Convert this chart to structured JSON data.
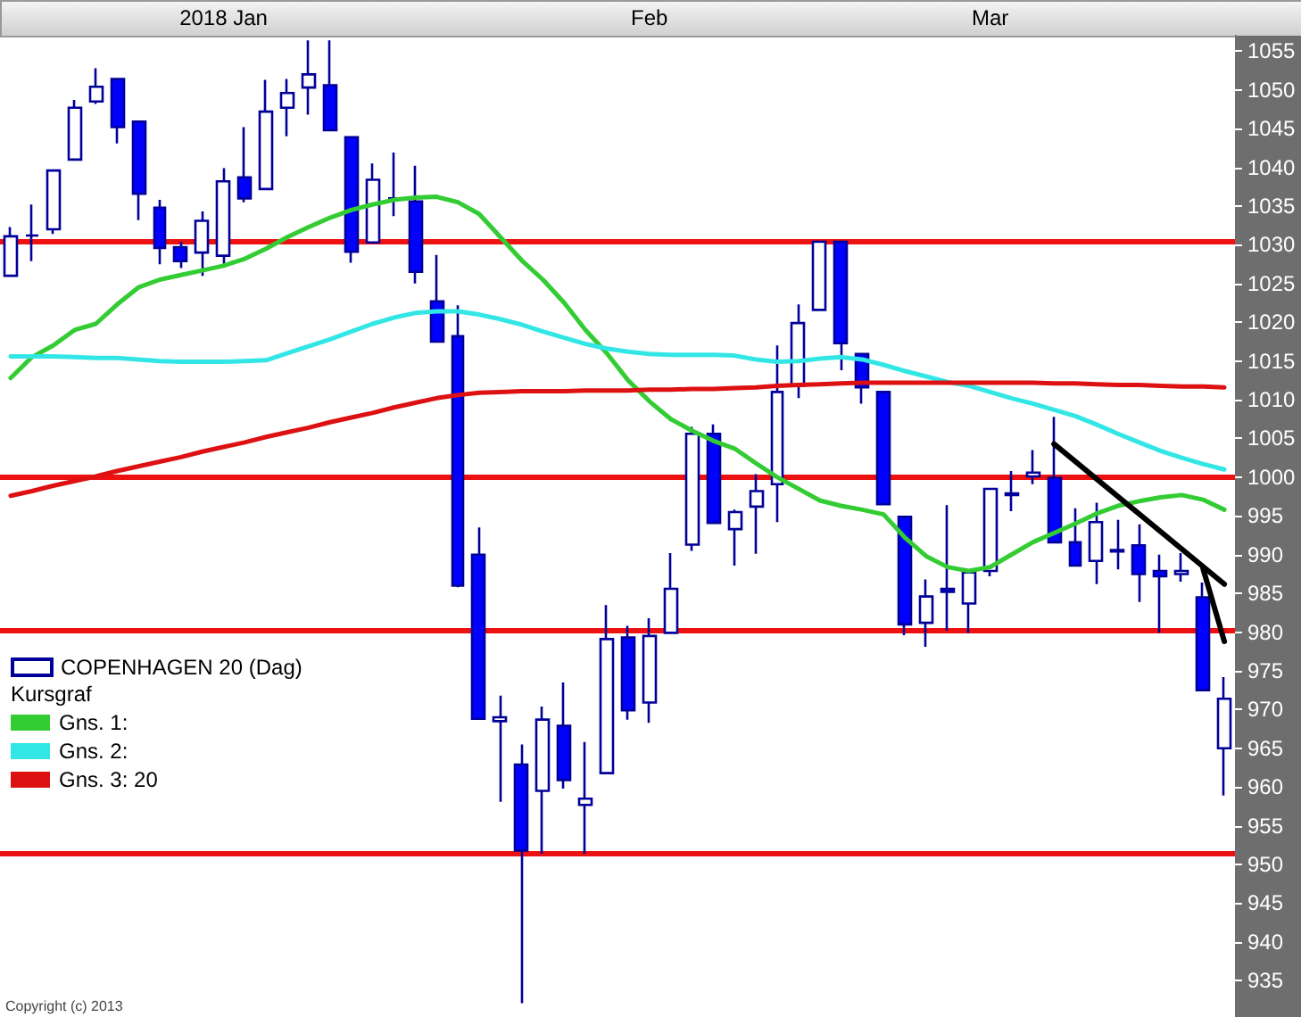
{
  "chart_data": {
    "type": "candlestick",
    "categories": [
      null,
      null,
      null,
      null,
      null,
      null,
      null,
      null,
      null,
      null,
      "2018 Jan",
      null,
      null,
      null,
      null,
      null,
      null,
      null,
      null,
      null,
      null,
      null,
      null,
      null,
      null,
      null,
      null,
      null,
      null,
      null,
      "Feb",
      null,
      null,
      null,
      null,
      null,
      null,
      null,
      null,
      null,
      null,
      null,
      null,
      null,
      null,
      null,
      "Mar",
      null,
      null,
      null,
      null,
      null,
      null,
      null,
      null,
      null,
      null,
      null
    ],
    "series": [
      {
        "name": "COPENHAGEN 20 (Dag)",
        "color": "#0000ff",
        "colors": [
          "#ffffff",
          "#000099",
          "#ffffff",
          "#ffffff",
          "#ffffff",
          "#0000ff",
          "#0000ff",
          "#0000ff",
          "#0000ff",
          "#ffffff",
          "#ffffff",
          "#0000ff",
          "#ffffff",
          "#ffffff",
          "#ffffff",
          "#0000ff",
          "#0000ff",
          "#ffffff",
          "#000099",
          "#0000ff",
          "#0000ff",
          "#0000ff",
          "#0000ff",
          "#ffffff",
          "#0000ff",
          "#ffffff",
          "#0000ff",
          "#ffffff",
          "#ffffff",
          "#0000ff",
          "#ffffff",
          "#ffffff",
          "#ffffff",
          "#0000ff",
          "#ffffff",
          "#ffffff",
          "#ffffff",
          "#ffffff",
          "#ffffff",
          "#0000ff",
          "#0000ff",
          "#0000ff",
          "#0000ff",
          "#ffffff",
          "#0000ff",
          "#ffffff",
          "#ffffff",
          "#ffffff",
          "#ffffff",
          "#0000ff",
          "#0000ff",
          "#ffffff",
          "#0000ff",
          "#0000ff",
          "#0000ff",
          "#ffffff",
          "#0000ff",
          "#ffffff"
        ],
        "ohlc": [
          [
            1026,
            1032.3,
            1026,
            1031.1
          ],
          [
            1031.2,
            1035.2,
            1027.9,
            1031.2
          ],
          [
            1032,
            1039.6,
            1031.4,
            1039.6
          ],
          [
            1041,
            1048.7,
            1040.9,
            1047.7
          ],
          [
            1048.5,
            1052.8,
            1048.2,
            1050.4
          ],
          [
            1051.4,
            1051.4,
            1043.1,
            1045.2
          ],
          [
            1045.9,
            1046,
            1033.2,
            1036.6
          ],
          [
            1034.8,
            1035.8,
            1027.5,
            1029.6
          ],
          [
            1029.7,
            1030.4,
            1027,
            1027.9
          ],
          [
            1029,
            1034.3,
            1026,
            1033.1
          ],
          [
            1028.6,
            1039.9,
            1027.3,
            1038.2
          ],
          [
            1038.7,
            1045.2,
            1035.5,
            1036
          ],
          [
            1037.2,
            1051.3,
            1037.2,
            1047.2
          ],
          [
            1047.7,
            1051.4,
            1044,
            1049.6
          ],
          [
            1050.3,
            1056.4,
            1046.8,
            1052
          ],
          [
            1050.6,
            1056.4,
            1044.8,
            1044.8
          ],
          [
            1043.9,
            1043.9,
            1027.7,
            1029.1
          ],
          [
            1030.3,
            1040.5,
            1030.3,
            1038.4
          ],
          [
            1036,
            1041.9,
            1033.7,
            1036
          ],
          [
            1035.6,
            1040.2,
            1025,
            1026.5
          ],
          [
            1022.7,
            1028.7,
            1017.5,
            1017.5
          ],
          [
            1018.2,
            1022.2,
            985.8,
            986
          ],
          [
            990,
            993.5,
            968.8,
            968.8
          ],
          [
            968.5,
            971.8,
            958.1,
            969
          ],
          [
            962.9,
            965.5,
            932.1,
            951.8
          ],
          [
            959.5,
            970.4,
            951.4,
            968.7
          ],
          [
            967.9,
            973.5,
            959.8,
            960.9
          ],
          [
            957.7,
            965.8,
            951.4,
            958.5
          ],
          [
            961.8,
            983.5,
            961.8,
            979.1
          ],
          [
            979.3,
            980.8,
            968.7,
            969.9
          ],
          [
            970.9,
            981.8,
            968.3,
            979.5
          ],
          [
            979.9,
            990.2,
            979.9,
            985.6
          ],
          [
            991.3,
            1006.5,
            990.5,
            1005.6
          ],
          [
            1005.6,
            1006.8,
            994.1,
            994.1
          ],
          [
            993.3,
            995.8,
            988.6,
            995.5
          ],
          [
            996.2,
            1000.4,
            990.1,
            998.2
          ],
          [
            999.1,
            1017,
            994.2,
            1011
          ],
          [
            1011.8,
            1022.3,
            1010.2,
            1019.9
          ],
          [
            1021.6,
            1030.4,
            1021.6,
            1030.4
          ],
          [
            1030.4,
            1030.4,
            1013.8,
            1017.3
          ],
          [
            1015.9,
            1015.9,
            1009.5,
            1011.6
          ],
          [
            1011,
            1011,
            996.4,
            996.5
          ],
          [
            994.9,
            994.9,
            979.6,
            981
          ],
          [
            981.2,
            986.8,
            978.1,
            984.6
          ],
          [
            985.6,
            996.4,
            980.2,
            985.2
          ],
          [
            983.7,
            988.1,
            979.9,
            987.7
          ],
          [
            987.9,
            998.6,
            987.2,
            998.5
          ],
          [
            997.7,
            1000.8,
            995.6,
            997.9
          ],
          [
            1000.1,
            1003.5,
            999.1,
            1000.6
          ],
          [
            999.9,
            1007.8,
            991.6,
            991.6
          ],
          [
            991.6,
            996,
            988.6,
            988.6
          ],
          [
            989.2,
            996.7,
            986.2,
            994.2
          ],
          [
            990.6,
            994.5,
            988.1,
            990.4
          ],
          [
            991.2,
            993.9,
            983.9,
            987.5
          ],
          [
            987.9,
            990,
            979.9,
            987.2
          ],
          [
            987.5,
            990.2,
            986.5,
            987.9
          ],
          [
            984.5,
            986.4,
            972.5,
            972.5
          ],
          [
            965,
            974.2,
            958.9,
            971.4
          ]
        ]
      },
      {
        "name": "Gns. 1:",
        "type": "line",
        "color": "#33cc33",
        "values": [
          1012.8,
          1015.5,
          1017,
          1019,
          1019.8,
          1022.3,
          1024.5,
          1025.5,
          1026.1,
          1026.7,
          1027.3,
          1028.2,
          1029.5,
          1031,
          1032.3,
          1033.5,
          1034.5,
          1035.2,
          1035.8,
          1036.1,
          1036.2,
          1035.5,
          1034,
          1031,
          1028,
          1025.5,
          1022.5,
          1019,
          1016,
          1012.5,
          1009.8,
          1007.5,
          1006,
          1004.7,
          1003.7,
          1001.8,
          1000,
          998.5,
          997,
          996.3,
          995.8,
          995.2,
          992.2,
          989.8,
          988.4,
          987.9,
          988.4,
          990,
          991.6,
          992.8,
          994,
          995.3,
          996.3,
          996.9,
          997.4,
          997.7,
          997.1,
          995.8
        ]
      },
      {
        "name": "Gns. 2:",
        "type": "line",
        "color": "#33e6e6",
        "values": [
          1015.6,
          1015.6,
          1015.6,
          1015.5,
          1015.4,
          1015.4,
          1015.2,
          1015,
          1014.9,
          1014.9,
          1014.9,
          1015,
          1015.1,
          1016,
          1016.9,
          1017.8,
          1018.8,
          1019.8,
          1020.6,
          1021.2,
          1021.4,
          1021.4,
          1021,
          1020.4,
          1019.7,
          1018.8,
          1018,
          1017.2,
          1016.6,
          1016.2,
          1015.9,
          1015.8,
          1015.8,
          1015.8,
          1015.7,
          1015.2,
          1014.9,
          1015,
          1015.3,
          1015.5,
          1015.2,
          1014.5,
          1013.7,
          1013,
          1012.3,
          1011.8,
          1011,
          1010.2,
          1009.5,
          1008.7,
          1007.9,
          1006.8,
          1005.6,
          1004.5,
          1003.4,
          1002.5,
          1001.7,
          1001
        ]
      },
      {
        "name": "Gns. 3: 20",
        "type": "line",
        "color": "#dd1111",
        "values": [
          997.6,
          998.2,
          998.9,
          999.5,
          1000.1,
          1000.8,
          1001.4,
          1002,
          1002.6,
          1003.3,
          1003.9,
          1004.5,
          1005.2,
          1005.8,
          1006.4,
          1007.1,
          1007.7,
          1008.3,
          1009,
          1009.6,
          1010.2,
          1010.6,
          1010.9,
          1011,
          1011.1,
          1011.1,
          1011.1,
          1011.2,
          1011.2,
          1011.2,
          1011.3,
          1011.3,
          1011.4,
          1011.4,
          1011.5,
          1011.6,
          1011.8,
          1011.9,
          1012,
          1012.1,
          1012.2,
          1012.2,
          1012.2,
          1012.2,
          1012.2,
          1012.2,
          1012.2,
          1012.2,
          1012.2,
          1012.1,
          1012.1,
          1012,
          1011.9,
          1011.9,
          1011.8,
          1011.7,
          1011.7,
          1011.6
        ]
      },
      {
        "type": "line",
        "color": "#000000",
        "values": [
          null,
          null,
          null,
          null,
          null,
          null,
          null,
          null,
          null,
          null,
          null,
          null,
          null,
          null,
          null,
          null,
          null,
          null,
          null,
          null,
          null,
          null,
          null,
          null,
          null,
          null,
          null,
          null,
          null,
          null,
          null,
          null,
          null,
          null,
          null,
          null,
          null,
          null,
          null,
          null,
          null,
          null,
          null,
          null,
          null,
          null,
          null,
          null,
          null,
          1004.3,
          null,
          null,
          null,
          null,
          null,
          null,
          null,
          986.2
        ]
      },
      {
        "type": "line",
        "color": "#000000",
        "values": [
          null,
          null,
          null,
          null,
          null,
          null,
          null,
          null,
          null,
          null,
          null,
          null,
          null,
          null,
          null,
          null,
          null,
          null,
          null,
          null,
          null,
          null,
          null,
          null,
          null,
          null,
          null,
          null,
          null,
          null,
          null,
          null,
          null,
          null,
          null,
          null,
          null,
          null,
          null,
          null,
          null,
          null,
          null,
          null,
          null,
          null,
          null,
          null,
          null,
          null,
          null,
          null,
          null,
          null,
          null,
          null,
          988.2,
          978.8
        ]
      }
    ],
    "ylim": [
      931,
      1057
    ],
    "yticks": [
      935,
      940,
      945,
      950,
      955,
      960,
      965,
      970,
      975,
      980,
      985,
      990,
      995,
      1000,
      1005,
      1010,
      1015,
      1020,
      1025,
      1030,
      1035,
      1040,
      1045,
      1050,
      1055
    ],
    "ref_lines": [
      {
        "axis": "y",
        "value": 1030.4,
        "color": "#ee1111"
      },
      {
        "axis": "y",
        "value": 1000,
        "color": "#ee1111"
      },
      {
        "axis": "y",
        "value": 980.2,
        "color": "#ee1111"
      },
      {
        "axis": "y",
        "value": 951.4,
        "color": "#ee1111"
      }
    ],
    "legend": "left",
    "legend_title": "Kursgraf",
    "marker": "none",
    "grid": false,
    "annotations": [
      "Copyright (c) 2013"
    ]
  }
}
